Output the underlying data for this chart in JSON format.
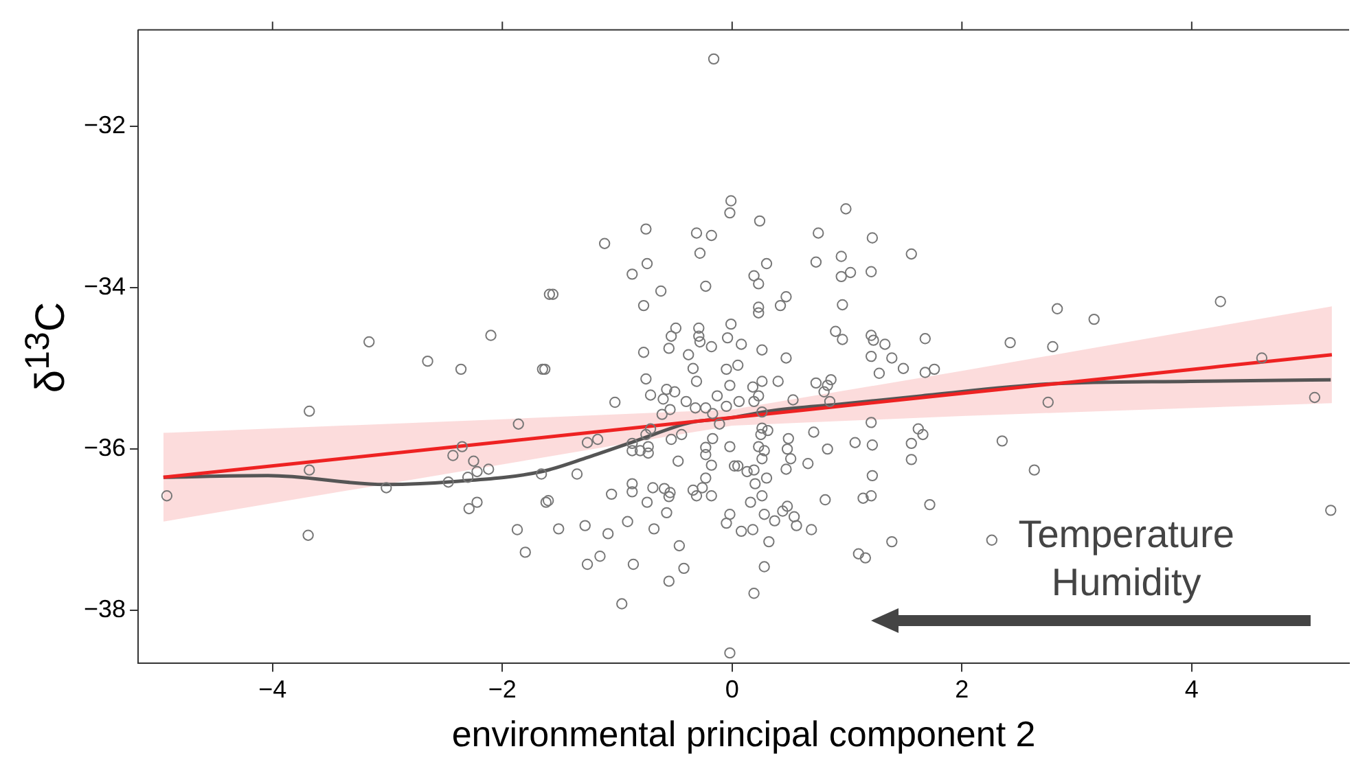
{
  "chart_data": {
    "type": "scatter",
    "xlabel": "environmental principal component 2",
    "ylabel": "δ$^{13}$C",
    "xlim": [
      -5.17,
      5.37
    ],
    "ylim": [
      -38.66,
      -30.8
    ],
    "xticks": [
      {
        "value": -4,
        "label": "−4"
      },
      {
        "value": -2,
        "label": "−2"
      },
      0,
      2,
      4
    ],
    "yticks": [
      {
        "value": -38,
        "label": "−38"
      },
      {
        "value": -36,
        "label": "−36"
      },
      {
        "value": -34,
        "label": "−34"
      },
      {
        "value": -32,
        "label": "−32"
      }
    ],
    "line_style": "solid",
    "annotations": [
      "Temperature",
      "Humidity"
    ],
    "series": [
      {
        "marker": "circle",
        "color": "#777777",
        "x": [
          -4.92,
          -3.68,
          -3.68,
          -3.69,
          -3.16,
          -2.65,
          -3.01,
          -2.36,
          -2.1,
          -1.65,
          -1.86,
          -2.35,
          -2.43,
          -2.25,
          -2.22,
          -2.12,
          -2.3,
          -2.47,
          -1.66,
          -2.22,
          -2.29,
          -1.62,
          -1.87,
          -1.8,
          -1.59,
          -1.11,
          -0.75,
          -0.74,
          -0.87,
          -0.62,
          -0.77,
          -1.56,
          -0.31,
          -0.18,
          -0.28,
          -0.23,
          -0.02,
          -0.49,
          -0.53,
          -0.55,
          -0.29,
          -0.29,
          -0.28,
          -0.18,
          -0.01,
          -0.04,
          -0.77,
          -0.38,
          -0.34,
          -0.05,
          -1.63,
          -0.75,
          -0.31,
          -0.02,
          -1.02,
          -0.71,
          -0.57,
          -0.5,
          -0.6,
          -0.4,
          -0.32,
          -0.23,
          -0.13,
          -0.54,
          -0.61,
          -0.17,
          -0.05,
          -0.11,
          -0.71,
          -0.75,
          -1.26,
          -1.17,
          -0.87,
          -0.87,
          -0.8,
          -0.73,
          -0.73,
          -0.53,
          -0.44,
          -0.17,
          -0.23,
          -0.23,
          -0.02,
          0.02,
          -0.18,
          -0.47,
          -0.23,
          -1.35,
          -1.6,
          -1.05,
          -0.87,
          -0.87,
          -0.69,
          -0.59,
          -0.55,
          -0.54,
          -0.34,
          -0.26,
          -0.31,
          -0.18,
          -0.74,
          -0.57,
          -1.51,
          -1.28,
          -1.08,
          -0.91,
          -0.68,
          -0.02,
          -0.05,
          -1.15,
          -1.26,
          -0.86,
          -0.46,
          -0.42,
          -0.55,
          -0.96,
          -0.02,
          -0.16,
          -0.01,
          0.99,
          0.24,
          0.75,
          1.22,
          1.56,
          0.3,
          0.73,
          0.95,
          0.19,
          0.23,
          0.95,
          1.03,
          1.21,
          0.47,
          0.42,
          0.23,
          0.23,
          0.96,
          0.9,
          0.96,
          1.21,
          1.23,
          1.33,
          1.21,
          1.39,
          1.49,
          1.28,
          0.47,
          0.26,
          0.08,
          0.05,
          0.4,
          0.26,
          0.18,
          0.23,
          0.19,
          0.06,
          0.53,
          0.73,
          0.83,
          0.86,
          0.8,
          0.85,
          0.26,
          0.26,
          0.31,
          0.25,
          0.49,
          0.71,
          0.83,
          1.07,
          1.21,
          1.22,
          1.56,
          1.56,
          1.62,
          0.23,
          0.28,
          0.26,
          0.51,
          0.48,
          0.66,
          0.05,
          0.13,
          0.19,
          0.3,
          0.47,
          0.2,
          0.16,
          0.26,
          0.28,
          0.37,
          0.44,
          0.48,
          0.54,
          0.56,
          0.08,
          0.18,
          0.32,
          0.69,
          0.81,
          1.14,
          1.21,
          1.22,
          1.1,
          1.16,
          1.39,
          0.28,
          0.19,
          4.25,
          2.83,
          3.15,
          1.68,
          2.42,
          2.79,
          1.68,
          1.76,
          4.61,
          5.07,
          2.75,
          1.66,
          2.35,
          2.63,
          1.72,
          5.21,
          2.26
        ],
        "values": [
          -36.58,
          -35.53,
          -36.26,
          -37.07,
          -34.67,
          -34.91,
          -36.48,
          -35.01,
          -34.59,
          -35.01,
          -35.69,
          -35.97,
          -36.08,
          -36.15,
          -36.28,
          -36.25,
          -36.35,
          -36.41,
          -36.31,
          -36.66,
          -36.74,
          -36.66,
          -37.0,
          -37.28,
          -34.08,
          -33.45,
          -33.27,
          -33.7,
          -33.83,
          -34.04,
          -34.22,
          -34.08,
          -33.32,
          -33.35,
          -33.57,
          -33.98,
          -33.07,
          -34.5,
          -34.6,
          -34.75,
          -34.5,
          -34.6,
          -34.67,
          -34.73,
          -34.45,
          -34.62,
          -34.8,
          -34.83,
          -35.0,
          -35.01,
          -35.01,
          -35.13,
          -35.16,
          -35.21,
          -35.42,
          -35.33,
          -35.26,
          -35.29,
          -35.38,
          -35.41,
          -35.49,
          -35.49,
          -35.34,
          -35.51,
          -35.57,
          -35.56,
          -35.47,
          -35.69,
          -35.75,
          -35.82,
          -35.92,
          -35.88,
          -35.93,
          -36.02,
          -36.02,
          -35.97,
          -36.05,
          -35.88,
          -35.82,
          -35.87,
          -35.98,
          -36.07,
          -35.97,
          -36.21,
          -36.2,
          -36.15,
          -36.36,
          -36.31,
          -36.64,
          -36.56,
          -36.43,
          -36.53,
          -36.48,
          -36.49,
          -36.59,
          -36.54,
          -36.51,
          -36.48,
          -36.58,
          -36.58,
          -36.66,
          -36.79,
          -36.99,
          -36.95,
          -37.05,
          -36.9,
          -36.99,
          -36.81,
          -36.92,
          -37.33,
          -37.43,
          -37.43,
          -37.2,
          -37.48,
          -37.64,
          -37.92,
          -38.53,
          -31.16,
          -32.92,
          -33.02,
          -33.17,
          -33.32,
          -33.38,
          -33.58,
          -33.7,
          -33.68,
          -33.61,
          -33.85,
          -33.95,
          -33.86,
          -33.81,
          -33.8,
          -34.11,
          -34.22,
          -34.24,
          -34.31,
          -34.21,
          -34.54,
          -34.64,
          -34.59,
          -34.65,
          -34.7,
          -34.85,
          -34.87,
          -35.0,
          -35.06,
          -34.87,
          -34.77,
          -34.7,
          -34.96,
          -35.16,
          -35.16,
          -35.23,
          -35.34,
          -35.41,
          -35.41,
          -35.39,
          -35.18,
          -35.21,
          -35.14,
          -35.29,
          -35.41,
          -35.54,
          -35.74,
          -35.77,
          -35.82,
          -35.87,
          -35.79,
          -36.0,
          -35.92,
          -35.67,
          -35.95,
          -35.93,
          -36.13,
          -35.75,
          -35.97,
          -36.02,
          -36.12,
          -36.12,
          -36.0,
          -36.18,
          -36.21,
          -36.28,
          -36.26,
          -36.36,
          -36.25,
          -36.43,
          -36.66,
          -36.58,
          -36.81,
          -36.89,
          -36.77,
          -36.71,
          -36.84,
          -36.95,
          -37.02,
          -37.0,
          -37.15,
          -37.0,
          -36.63,
          -36.61,
          -36.58,
          -36.33,
          -37.3,
          -37.35,
          -37.15,
          -37.46,
          -37.79,
          -34.17,
          -34.26,
          -34.39,
          -34.63,
          -34.68,
          -34.73,
          -35.05,
          -35.01,
          -34.87,
          -35.36,
          -35.42,
          -35.82,
          -35.9,
          -36.26,
          -36.69,
          -36.76,
          -37.13
        ]
      },
      {
        "type": "line",
        "color": "#ee2222",
        "x": [
          -4.95,
          -2,
          0,
          2,
          5.22
        ],
        "values": [
          -36.35,
          -35.91,
          -35.61,
          -35.31,
          -34.83
        ],
        "lower": [
          -36.9,
          -36.19,
          -35.71,
          -35.59,
          -35.43
        ],
        "upper": [
          -35.8,
          -35.63,
          -35.51,
          -35.03,
          -34.23
        ]
      },
      {
        "type": "line",
        "color": "#555555",
        "x": [
          -4.95,
          -4.04,
          -3.02,
          -2.38,
          -1.66,
          -1.25,
          -0.84,
          -0.36,
          -0.05,
          0.37,
          0.97,
          1.65,
          2.79,
          3.99,
          5.21
        ],
        "values": [
          -36.35,
          -36.33,
          -36.44,
          -36.4,
          -36.28,
          -36.1,
          -35.9,
          -35.67,
          -35.62,
          -35.52,
          -35.44,
          -35.34,
          -35.19,
          -35.16,
          -35.14
        ]
      }
    ]
  }
}
